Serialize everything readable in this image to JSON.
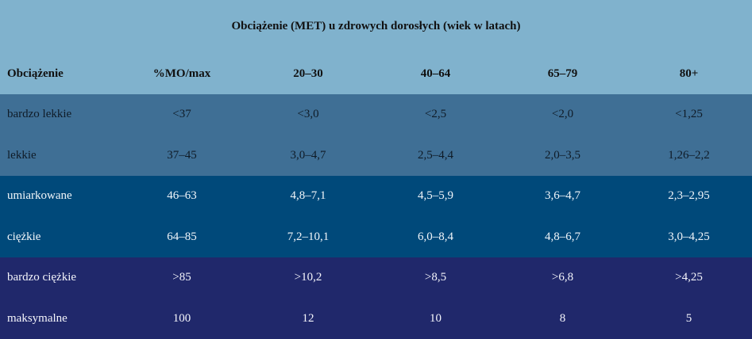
{
  "title": "Obciążenie (MET) u zdrowych dorosłych (wiek w latach)",
  "headers": [
    "Obciążenie",
    "%MO/max",
    "20–30",
    "40–64",
    "65–79",
    "80+"
  ],
  "rows": [
    [
      "bardzo lekkie",
      "<37",
      "<3,0",
      "<2,5",
      "<2,0",
      "<1,25"
    ],
    [
      "lekkie",
      "37–45",
      "3,0–4,7",
      "2,5–4,4",
      "2,0–3,5",
      "1,26–2,2"
    ],
    [
      "umiarkowane",
      "46–63",
      "4,8–7,1",
      "4,5–5,9",
      "3,6–4,7",
      "2,3–2,95"
    ],
    [
      "ciężkie",
      "64–85",
      "7,2–10,1",
      "6,0–8,4",
      "4,8–6,7",
      "3,0–4,25"
    ],
    [
      "bardzo ciężkie",
      ">85",
      ">10,2",
      ">8,5",
      ">6,8",
      ">4,25"
    ],
    [
      "maksymalne",
      "100",
      "12",
      "10",
      "8",
      "5"
    ]
  ],
  "colors": {
    "header_bg": "#80b2cd",
    "group_light": "#3f6f95",
    "group_mid": "#00497a",
    "group_dark": "#20286b"
  }
}
